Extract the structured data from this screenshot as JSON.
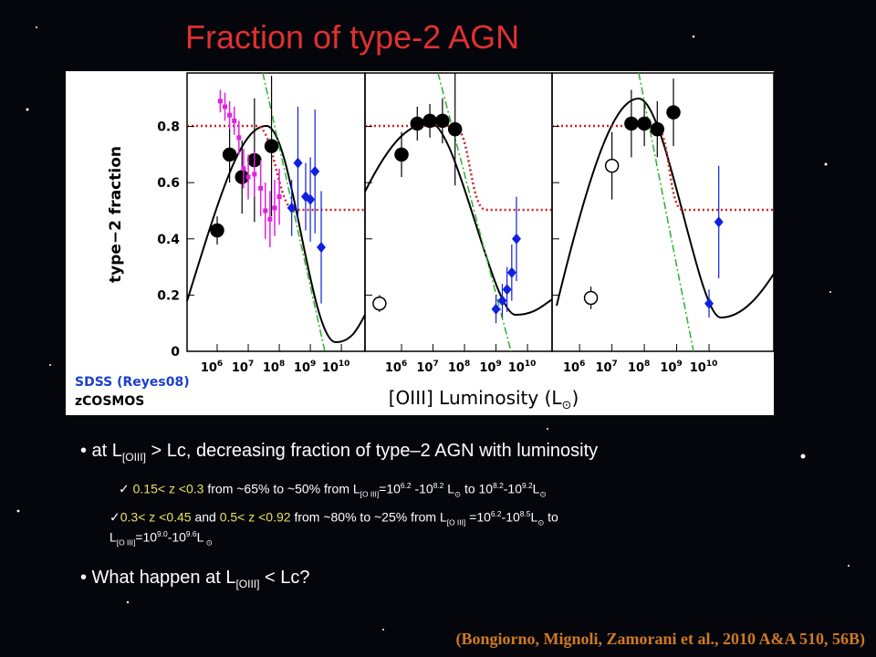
{
  "title": "Fraction of type-2 AGN",
  "figure": {
    "ylabel": "type−2 fraction",
    "xlabel": "[OIII] Luminosity (L",
    "xlabel_sub": "⊙",
    "xlabel_end": ")",
    "legend": [
      "SDSS (Reyes08)",
      "zCOSMOS"
    ],
    "ylim": [
      0,
      0.99
    ],
    "yticks": [
      0,
      0.2,
      0.4,
      0.6,
      0.8
    ],
    "panels": [
      {
        "xlim": [
          5.03,
          10.76
        ],
        "xticks": [
          {
            "value": 6,
            "label": "10",
            "sup": "6"
          },
          {
            "value": 7,
            "label": "10",
            "sup": "7"
          },
          {
            "value": 8,
            "label": "10",
            "sup": "8"
          },
          {
            "value": 9,
            "label": "10",
            "sup": "9"
          },
          {
            "value": 10,
            "label": "10",
            "sup": "10"
          }
        ],
        "points": [
          {
            "x": 6.0,
            "y": 0.43,
            "err": 0.05,
            "kind": "black"
          },
          {
            "x": 6.4,
            "y": 0.7,
            "err": 0.1,
            "kind": "black"
          },
          {
            "x": 6.8,
            "y": 0.62,
            "err": 0.13,
            "kind": "black"
          },
          {
            "x": 7.2,
            "y": 0.68,
            "err": 0.22,
            "kind": "black"
          },
          {
            "x": 7.75,
            "y": 0.73,
            "err": 0.25,
            "kind": "black"
          },
          {
            "x": 6.1,
            "y": 0.89,
            "err": 0.04,
            "kind": "magenta"
          },
          {
            "x": 6.25,
            "y": 0.87,
            "err": 0.05,
            "kind": "magenta"
          },
          {
            "x": 6.4,
            "y": 0.84,
            "err": 0.05,
            "kind": "magenta"
          },
          {
            "x": 6.55,
            "y": 0.82,
            "err": 0.05,
            "kind": "magenta"
          },
          {
            "x": 6.7,
            "y": 0.76,
            "err": 0.06,
            "kind": "magenta"
          },
          {
            "x": 6.85,
            "y": 0.65,
            "err": 0.07,
            "kind": "magenta"
          },
          {
            "x": 7.0,
            "y": 0.62,
            "err": 0.08,
            "kind": "magenta"
          },
          {
            "x": 7.2,
            "y": 0.63,
            "err": 0.08,
            "kind": "magenta"
          },
          {
            "x": 7.4,
            "y": 0.58,
            "err": 0.1,
            "kind": "magenta"
          },
          {
            "x": 7.55,
            "y": 0.5,
            "err": 0.1,
            "kind": "magenta"
          },
          {
            "x": 7.7,
            "y": 0.47,
            "err": 0.1,
            "kind": "magenta"
          },
          {
            "x": 7.85,
            "y": 0.51,
            "err": 0.1,
            "kind": "magenta"
          },
          {
            "x": 8.0,
            "y": 0.55,
            "err": 0.1,
            "kind": "magenta"
          },
          {
            "x": 8.4,
            "y": 0.51,
            "err": 0.1,
            "kind": "blue"
          },
          {
            "x": 8.6,
            "y": 0.67,
            "err": 0.2,
            "kind": "blue"
          },
          {
            "x": 8.85,
            "y": 0.55,
            "err": 0.12,
            "kind": "blue"
          },
          {
            "x": 9.0,
            "y": 0.54,
            "err": 0.15,
            "kind": "blue"
          },
          {
            "x": 9.15,
            "y": 0.64,
            "err": 0.22,
            "kind": "blue"
          },
          {
            "x": 9.35,
            "y": 0.37,
            "err": 0.2,
            "kind": "blue"
          }
        ]
      },
      {
        "xlim": [
          4.84,
          10.78
        ],
        "xticks": [
          {
            "value": 6,
            "label": "10",
            "sup": "6"
          },
          {
            "value": 7,
            "label": "10",
            "sup": "7"
          },
          {
            "value": 8,
            "label": "10",
            "sup": "8"
          },
          {
            "value": 9,
            "label": "10",
            "sup": "9"
          },
          {
            "value": 10,
            "label": "10",
            "sup": "10"
          }
        ],
        "points": [
          {
            "x": 5.3,
            "y": 0.17,
            "err": 0.03,
            "kind": "open"
          },
          {
            "x": 6.0,
            "y": 0.7,
            "err": 0.08,
            "kind": "black"
          },
          {
            "x": 6.5,
            "y": 0.81,
            "err": 0.06,
            "kind": "black"
          },
          {
            "x": 6.9,
            "y": 0.82,
            "err": 0.06,
            "kind": "black"
          },
          {
            "x": 7.3,
            "y": 0.82,
            "err": 0.08,
            "kind": "black"
          },
          {
            "x": 7.7,
            "y": 0.79,
            "err": 0.2,
            "kind": "black"
          },
          {
            "x": 9.0,
            "y": 0.15,
            "err": 0.05,
            "kind": "blue"
          },
          {
            "x": 9.2,
            "y": 0.18,
            "err": 0.06,
            "kind": "blue"
          },
          {
            "x": 9.35,
            "y": 0.22,
            "err": 0.08,
            "kind": "blue"
          },
          {
            "x": 9.5,
            "y": 0.28,
            "err": 0.1,
            "kind": "blue"
          },
          {
            "x": 9.65,
            "y": 0.4,
            "err": 0.15,
            "kind": "blue"
          }
        ]
      },
      {
        "xlim": [
          5.15,
          12.0
        ],
        "xticks": [
          {
            "value": 6,
            "label": "10",
            "sup": "6"
          },
          {
            "value": 7,
            "label": "10",
            "sup": "7"
          },
          {
            "value": 8,
            "label": "10",
            "sup": "8"
          },
          {
            "value": 9,
            "label": "10",
            "sup": "9"
          },
          {
            "value": 10,
            "label": "10",
            "sup": "10"
          }
        ],
        "points": [
          {
            "x": 6.35,
            "y": 0.19,
            "err": 0.04,
            "kind": "open"
          },
          {
            "x": 7.0,
            "y": 0.66,
            "err": 0.12,
            "kind": "open"
          },
          {
            "x": 7.6,
            "y": 0.81,
            "err": 0.12,
            "kind": "black"
          },
          {
            "x": 8.0,
            "y": 0.81,
            "err": 0.08,
            "kind": "black"
          },
          {
            "x": 8.4,
            "y": 0.79,
            "err": 0.1,
            "kind": "black"
          },
          {
            "x": 8.9,
            "y": 0.85,
            "err": 0.12,
            "kind": "black"
          },
          {
            "x": 10.0,
            "y": 0.17,
            "err": 0.05,
            "kind": "blue"
          },
          {
            "x": 10.3,
            "y": 0.46,
            "err": 0.2,
            "kind": "blue"
          }
        ]
      }
    ]
  },
  "lines": [
    {
      "runs": [
        {
          "t": "• at L"
        },
        {
          "t": "[OIII]",
          "s": "sub"
        },
        {
          "t": " > Lc,  decreasing fraction of type–2 AGN with luminosity"
        }
      ]
    },
    {
      "runs": [
        {
          "t": "✓   "
        },
        {
          "t": "0.15< z <0.3",
          "c": "y"
        },
        {
          "t": " from ~65% to ~50% from L"
        },
        {
          "t": "[O III]",
          "s": "sub"
        },
        {
          "t": "=10"
        },
        {
          "t": "6.2",
          "s": "sup"
        },
        {
          "t": " -10"
        },
        {
          "t": "8.2",
          "s": "sup"
        },
        {
          "t": " L"
        },
        {
          "t": "⊙",
          "s": "sub"
        },
        {
          "t": " to  10"
        },
        {
          "t": "8.2",
          "s": "sup"
        },
        {
          "t": "-10"
        },
        {
          "t": "9.2",
          "s": "sup"
        },
        {
          "t": "L"
        },
        {
          "t": "⊙",
          "s": "sub"
        }
      ]
    },
    {
      "runs": [
        {
          "t": "✓"
        },
        {
          "t": "0.3< z <0.45",
          "c": "y"
        },
        {
          "t": " and "
        },
        {
          "t": "0.5< z <0.92",
          "c": "y"
        },
        {
          "t": " from ~80% to ~25% from  L"
        },
        {
          "t": "[O III]",
          "s": "sub"
        },
        {
          "t": " =10"
        },
        {
          "t": "6.2",
          "s": "sup"
        },
        {
          "t": "-10"
        },
        {
          "t": "8.5",
          "s": "sup"
        },
        {
          "t": "L"
        },
        {
          "t": "⊙",
          "s": "sub"
        },
        {
          "t": "  to"
        }
      ]
    },
    {
      "runs": [
        {
          "t": "L"
        },
        {
          "t": "[O III]",
          "s": "sub"
        },
        {
          "t": "=10"
        },
        {
          "t": "9.0",
          "s": "sup"
        },
        {
          "t": "-10"
        },
        {
          "t": "9.6",
          "s": "sup"
        },
        {
          "t": "L"
        },
        {
          "t": " ⊙",
          "s": "sub"
        }
      ]
    },
    {
      "runs": [
        {
          "t": "• What happen at L"
        },
        {
          "t": "[OIII]",
          "s": "sub"
        },
        {
          "t": " < Lc?"
        }
      ]
    }
  ],
  "citation": "(Bongiorno, Mignoli, Zamorani et al., 2010 A&A 510, 56B)"
}
